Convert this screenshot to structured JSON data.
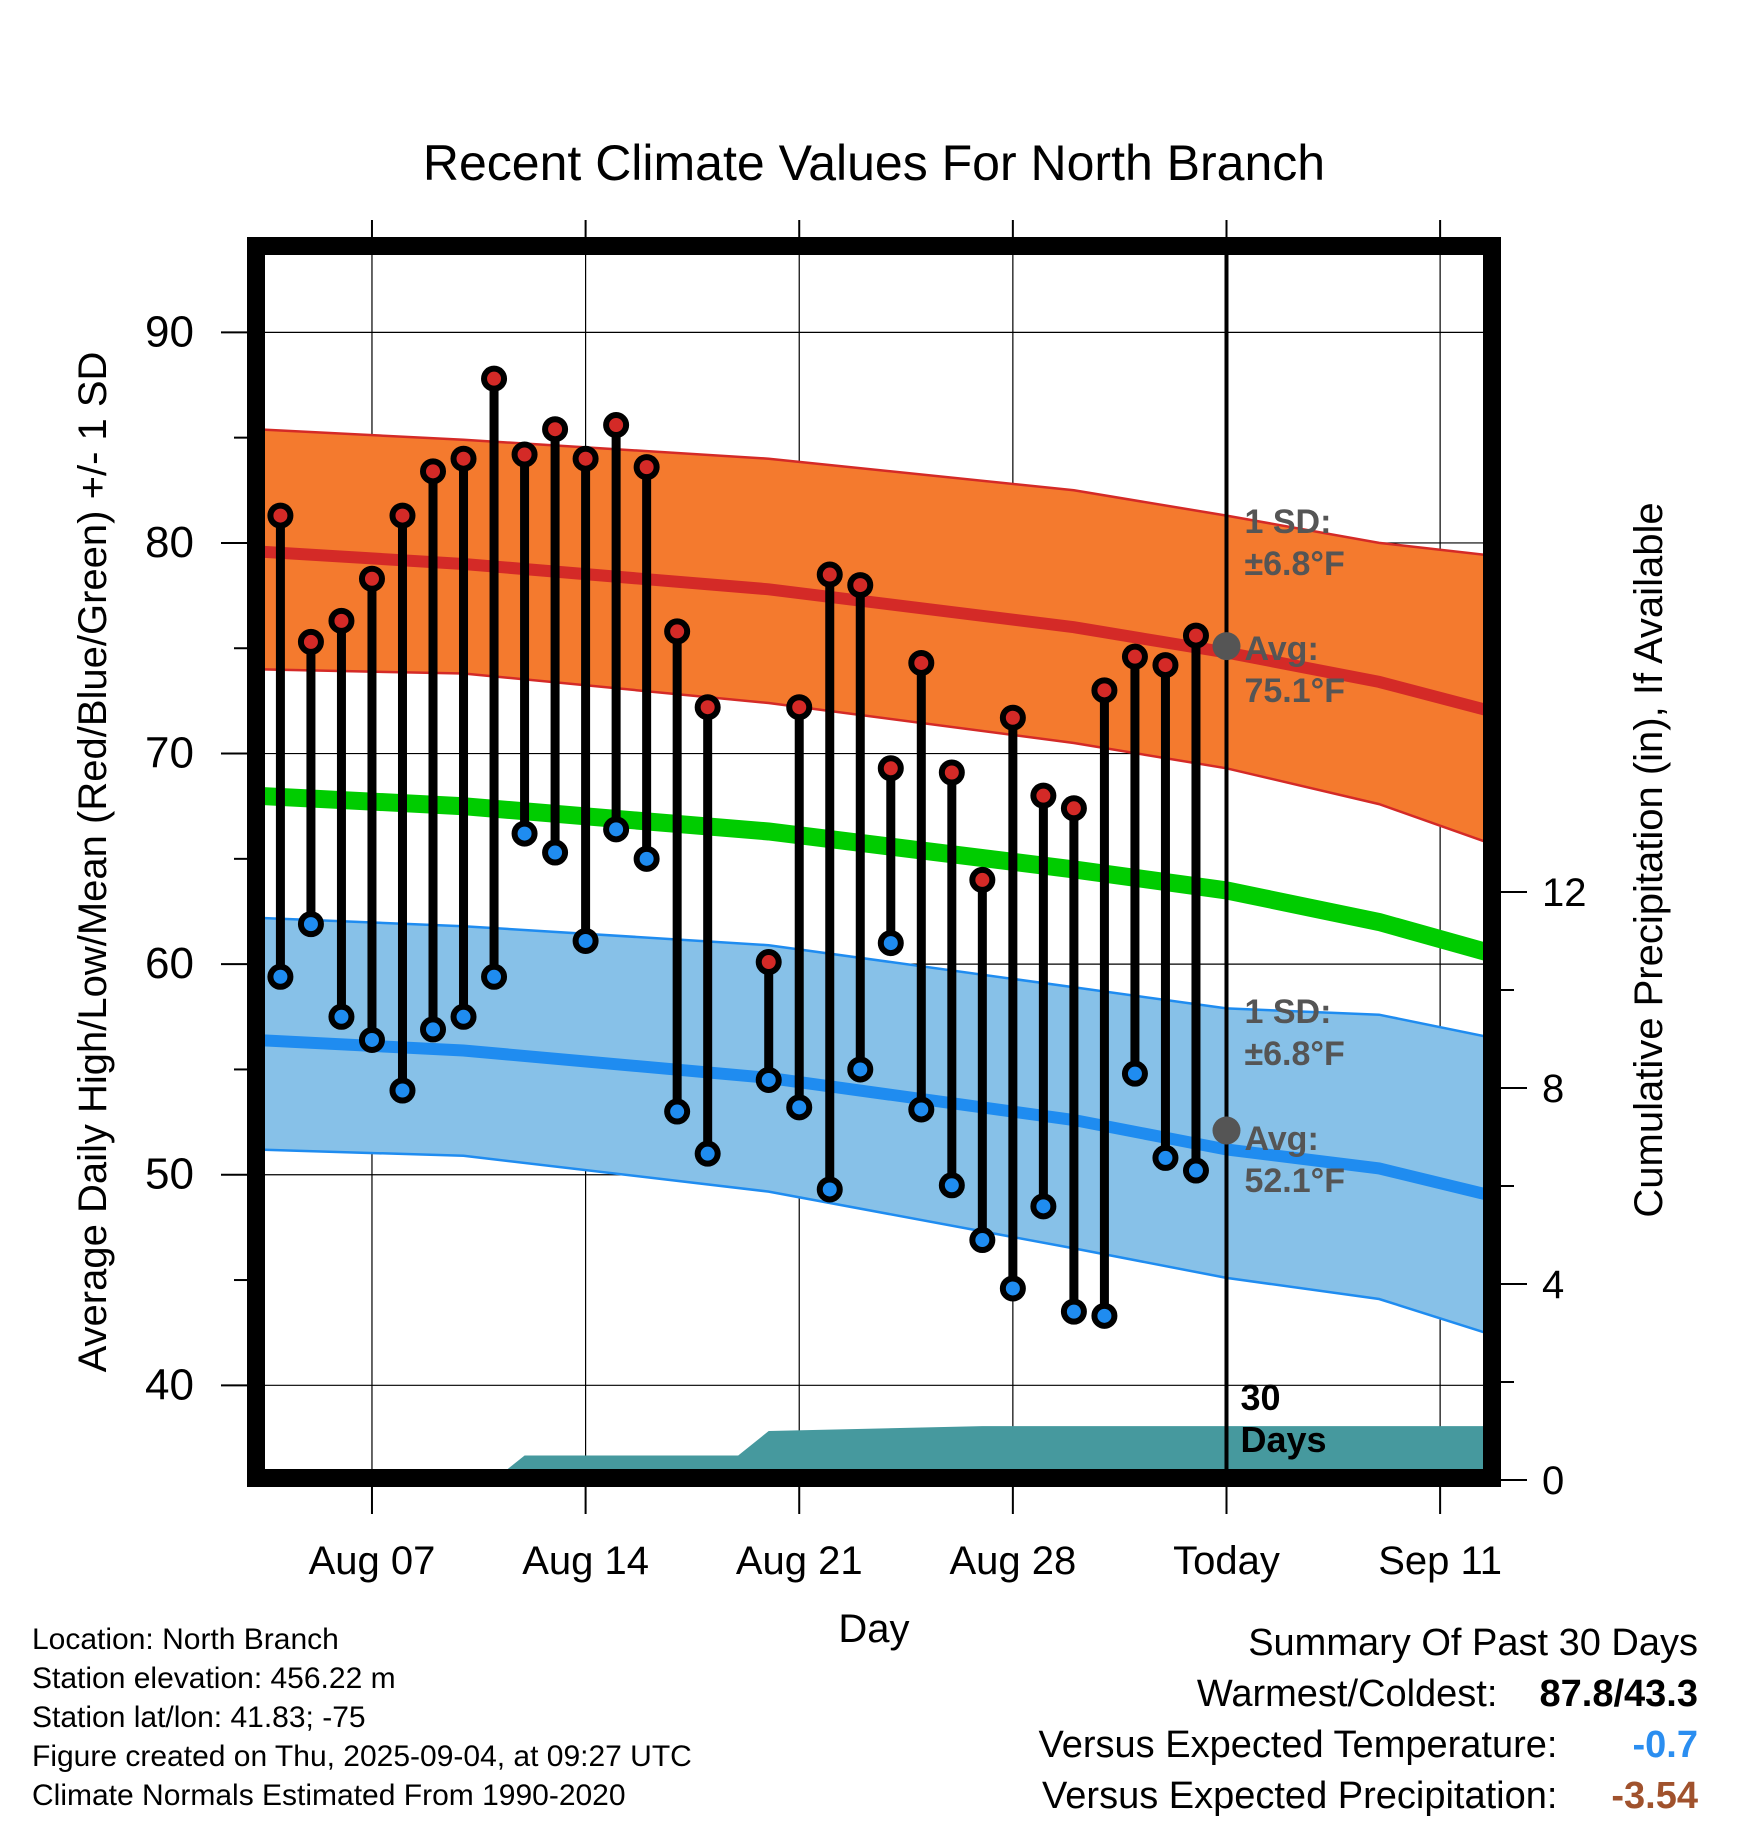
{
  "chart_data": {
    "type": "line",
    "title": "Recent Climate Values For North Branch",
    "xlabel": "Day",
    "ylabel": "Average Daily High/Low/Mean (Red/Blue/Green) +/- 1 SD",
    "ylabel_right": "Cumulative Precipitation (in), If Available",
    "x_tick_labels": [
      "Aug 07",
      "Aug 14",
      "Aug 21",
      "Aug 28",
      "Today",
      "Sep 11"
    ],
    "x_tick_days": [
      7,
      14,
      21,
      28,
      35,
      42
    ],
    "xlim": [
      3.2,
      43.7
    ],
    "y_ticks": [
      40,
      50,
      60,
      70,
      80,
      90
    ],
    "ylim": [
      35.6,
      94.1
    ],
    "y2_ticks": [
      0,
      4,
      8,
      12
    ],
    "y2_max": 24,
    "grid": true,
    "today_day": 35,
    "today_label": "30 Days",
    "days": [
      4,
      5,
      6,
      7,
      8,
      9,
      10,
      11,
      12,
      13,
      14,
      15,
      16,
      17,
      18,
      19,
      20,
      21,
      22,
      23,
      24,
      25,
      26,
      27,
      28,
      29,
      30,
      31,
      32,
      33,
      34
    ],
    "observed_high": [
      81.3,
      75.3,
      76.3,
      78.3,
      81.3,
      83.4,
      84.0,
      87.8,
      84.2,
      85.4,
      84.0,
      85.6,
      83.6,
      75.8,
      72.2,
      60.1,
      72.2,
      78.5,
      78.0,
      69.3,
      74.3,
      69.1,
      64.0,
      71.7,
      68.0,
      67.4,
      73.0,
      74.6,
      74.2,
      75.6
    ],
    "observed_high_days": [
      4,
      5,
      6,
      7,
      8,
      9,
      10,
      11,
      12,
      13,
      14,
      15,
      16,
      17,
      18,
      20,
      21,
      22,
      23,
      24,
      25,
      26,
      27,
      28,
      29,
      30,
      31,
      32,
      33,
      34
    ],
    "observed_low_days": [
      4,
      5,
      6,
      7,
      8,
      9,
      10,
      11,
      12,
      13,
      14,
      15,
      16,
      17,
      18,
      20,
      21,
      22,
      23,
      24,
      25,
      26,
      27,
      28,
      29,
      30,
      31,
      32,
      33,
      34
    ],
    "observed_low": [
      59.4,
      61.9,
      57.5,
      56.4,
      54.0,
      56.9,
      57.5,
      59.4,
      66.2,
      65.3,
      61.1,
      66.4,
      65.0,
      53.0,
      51.0,
      54.5,
      53.2,
      49.3,
      55.0,
      61.0,
      53.1,
      49.5,
      46.9,
      44.6,
      48.5,
      43.5,
      43.3,
      54.8,
      50.8,
      50.2
    ],
    "normal_high": {
      "days": [
        3.2,
        10,
        20,
        30,
        35,
        40,
        43.7
      ],
      "values": [
        79.6,
        79.0,
        77.8,
        76.0,
        74.8,
        73.4,
        72.0
      ],
      "sd_upper": [
        85.4,
        84.9,
        84.0,
        82.5,
        81.3,
        80.0,
        79.4
      ],
      "sd_lower": [
        74.0,
        73.8,
        72.4,
        70.5,
        69.3,
        67.6,
        65.7
      ]
    },
    "normal_low": {
      "days": [
        3.2,
        10,
        20,
        30,
        35,
        40,
        43.7
      ],
      "values": [
        56.4,
        55.9,
        54.6,
        52.6,
        51.2,
        50.3,
        49.0
      ],
      "sd_upper": [
        62.2,
        61.8,
        60.9,
        58.9,
        57.9,
        57.6,
        56.5
      ],
      "sd_lower": [
        51.2,
        50.9,
        49.2,
        46.5,
        45.1,
        44.1,
        42.4
      ]
    },
    "normal_mean": {
      "days": [
        3.2,
        10,
        20,
        30,
        35,
        40,
        43.7
      ],
      "values": [
        68.0,
        67.5,
        66.3,
        64.5,
        63.5,
        62.0,
        60.5
      ]
    },
    "precip_cumulative": {
      "days": [
        3.2,
        11,
        12,
        19,
        20,
        27,
        35,
        43.7
      ],
      "values": [
        0,
        0,
        0.5,
        0.5,
        1.0,
        1.1,
        1.1,
        1.1
      ]
    },
    "annotations": {
      "high_sd_label": "1 SD:",
      "high_sd_value": "±6.8°F",
      "high_avg_label": "Avg:",
      "high_avg_value": "75.1°F",
      "low_sd_label": "1 SD:",
      "low_sd_value": "±6.8°F",
      "low_avg_label": "Avg:",
      "low_avg_value": "52.1°F",
      "high_today_avg": 75.1,
      "low_today_avg": 52.1
    },
    "colors": {
      "high_band": "#f47a2e",
      "high_line": "#d42a27",
      "low_band": "#87c1e8",
      "low_line": "#1f8cf0",
      "mean_line": "#00cc00",
      "precip": "#46999e",
      "high_marker": "#d42a27",
      "low_marker": "#1f8cf0",
      "annotation_text": "#555555",
      "avg_marker": "#555555"
    }
  },
  "info": {
    "location": "Location: North Branch",
    "elevation": "Station elevation: 456.22 m",
    "latlon": "Station lat/lon: 41.83; -75",
    "created": "Figure created on Thu, 2025-09-04, at 09:27 UTC",
    "normals": "Climate Normals Estimated From 1990-2020"
  },
  "summary": {
    "title": "Summary Of Past 30 Days",
    "warm_cold_label": "Warmest/Coldest:",
    "warm_cold_value": "87.8/43.3",
    "temp_label": "Versus Expected Temperature:",
    "temp_value": "-0.7",
    "temp_color": "#2b8ef0",
    "precip_label": "Versus Expected Precipitation:",
    "precip_value": "-3.54",
    "precip_color": "#a0522d"
  }
}
